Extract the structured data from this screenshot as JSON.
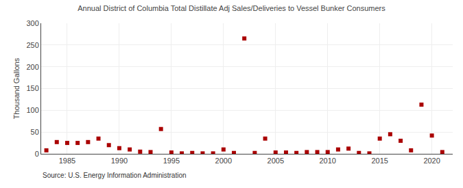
{
  "chart_data": {
    "type": "scatter",
    "title": "Annual District of Columbia Total Distillate Adj Sales/Deliveries to Vessel Bunker Consumers",
    "ylabel": "Thousand Gallons",
    "annotations": [
      "Source: U.S. Energy Information Administration"
    ],
    "x": [
      1983,
      1984,
      1985,
      1986,
      1987,
      1988,
      1989,
      1990,
      1991,
      1992,
      1993,
      1994,
      1995,
      1996,
      1997,
      1998,
      1999,
      2000,
      2001,
      2002,
      2003,
      2004,
      2005,
      2006,
      2007,
      2008,
      2009,
      2010,
      2011,
      2012,
      2013,
      2014,
      2015,
      2016,
      2017,
      2018,
      2019,
      2020,
      2021
    ],
    "values": [
      8,
      27,
      25,
      25,
      27,
      35,
      20,
      13,
      10,
      5,
      4,
      57,
      3,
      1,
      2,
      1,
      1,
      10,
      2,
      265,
      2,
      35,
      3,
      3,
      2,
      4,
      4,
      4,
      10,
      12,
      2,
      1,
      35,
      45,
      30,
      8,
      113,
      42,
      4
    ],
    "color": "#aa0000",
    "marker": "square",
    "xlim": [
      1982.5,
      2022
    ],
    "ylim": [
      0,
      300
    ],
    "xticks": [
      1985,
      1990,
      1995,
      2000,
      2005,
      2010,
      2015,
      2020
    ],
    "yticks": [
      0,
      50,
      100,
      150,
      200,
      250,
      300
    ],
    "grid": true
  }
}
